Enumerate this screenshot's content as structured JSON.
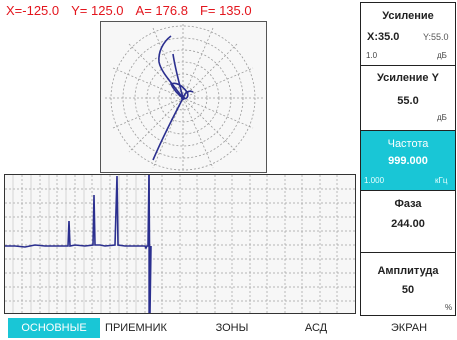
{
  "readout": {
    "x": "X=-125.0",
    "y": "Y= 125.0",
    "a": "A= 176.8",
    "f": "F= 135.0"
  },
  "panel": {
    "gain": {
      "title": "Усиление",
      "x_value": "X:35.0",
      "y_value": "Y:55.0",
      "step": "1.0",
      "unit": "дБ"
    },
    "gain_y": {
      "title": "Усиление Y",
      "value": "55.0",
      "unit": "дБ"
    },
    "frequency": {
      "title": "Частота",
      "value": "999.000",
      "step": "1.000",
      "unit": "кГц"
    },
    "phase": {
      "title": "Фаза",
      "value": "244.00"
    },
    "amplitude": {
      "title": "Амплитуда",
      "value": "50",
      "unit": "%"
    }
  },
  "tabs": [
    {
      "label": "ОСНОВНЫЕ",
      "active": true
    },
    {
      "label": "ПРИЕМНИК",
      "active": false
    },
    {
      "label": "ЗОНЫ",
      "active": false
    },
    {
      "label": "АСД",
      "active": false
    },
    {
      "label": "ЭКРАН",
      "active": false
    }
  ],
  "colors": {
    "accent": "#19c6d6",
    "readout_text": "#e3151d",
    "trace": "#2b2f8f"
  }
}
